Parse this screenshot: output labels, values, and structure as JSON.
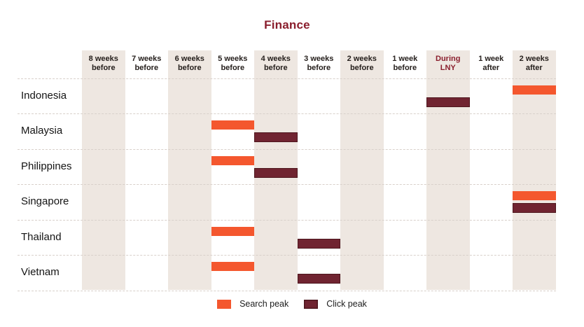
{
  "chart_data": {
    "type": "heatmap",
    "title": "Finance",
    "xlabel": "",
    "ylabel": "",
    "legend_position": "bottom",
    "grid": "dashed-horizontal",
    "x_categories": [
      "8 weeks before",
      "7 weeks before",
      "6 weeks before",
      "5 weeks before",
      "4 weeks before",
      "3 weeks before",
      "2 weeks before",
      "1 week before",
      "During LNY",
      "1 week after",
      "2 weeks after"
    ],
    "y_categories": [
      "Indonesia",
      "Malaysia",
      "Philippines",
      "Singapore",
      "Thailand",
      "Vietnam"
    ],
    "shaded_columns": [
      "8 weeks before",
      "6 weeks before",
      "4 weeks before",
      "2 weeks before",
      "During LNY",
      "2 weeks after"
    ],
    "accent_column": "During LNY",
    "series": [
      {
        "name": "Search peak",
        "color": "#f4572e",
        "points": [
          {
            "country": "Indonesia",
            "period": "2 weeks after"
          },
          {
            "country": "Malaysia",
            "period": "5 weeks before"
          },
          {
            "country": "Philippines",
            "period": "5 weeks before"
          },
          {
            "country": "Singapore",
            "period": "2 weeks after"
          },
          {
            "country": "Thailand",
            "period": "5 weeks before"
          },
          {
            "country": "Vietnam",
            "period": "5 weeks before"
          }
        ]
      },
      {
        "name": "Click peak",
        "color": "#702431",
        "border_color": "#4e171e",
        "points": [
          {
            "country": "Indonesia",
            "period": "During LNY"
          },
          {
            "country": "Malaysia",
            "period": "4 weeks before"
          },
          {
            "country": "Philippines",
            "period": "4 weeks before"
          },
          {
            "country": "Singapore",
            "period": "2 weeks after"
          },
          {
            "country": "Thailand",
            "period": "3 weeks before"
          },
          {
            "country": "Vietnam",
            "period": "3 weeks before"
          }
        ]
      }
    ],
    "styles": {
      "column_shade": "#eee7e1",
      "dashed_line": "#d8d0ca",
      "accent_text": "#8a1e2d",
      "header_text": "#26201d"
    }
  }
}
